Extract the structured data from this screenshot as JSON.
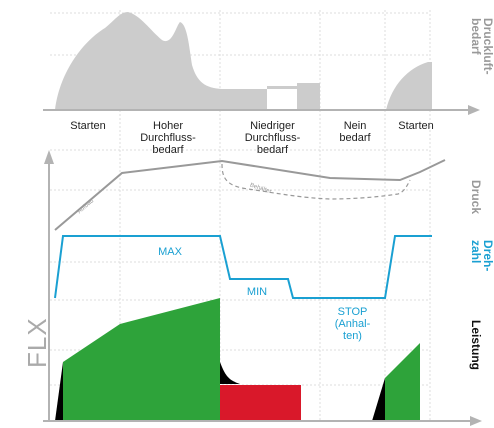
{
  "phases": [
    {
      "id": "start1",
      "lines": [
        "Starten"
      ]
    },
    {
      "id": "high",
      "lines": [
        "Hoher",
        "Durchfluss-",
        "bedarf"
      ]
    },
    {
      "id": "low",
      "lines": [
        "Niedriger",
        "Durchfluss-",
        "bedarf"
      ]
    },
    {
      "id": "none",
      "lines": [
        "Nein",
        "bedarf"
      ]
    },
    {
      "id": "start2",
      "lines": [
        "Starten"
      ]
    }
  ],
  "row_labels": {
    "demand": [
      "Druckluft-",
      "bedarf"
    ],
    "pressure": "Druck",
    "speed": [
      "Dreh-",
      "zahl"
    ],
    "power": "Leistung"
  },
  "annotations": {
    "aufbau": "Aufbau",
    "behalter": "Behälter",
    "max": "MAX",
    "min": "MIN",
    "stop": [
      "STOP",
      "(Anhal-",
      "ten)"
    ]
  },
  "brand": "FLX",
  "colors": {
    "demand_fill": "#cccccc",
    "pressure_line": "#999999",
    "speed_line": "#1aa0d2",
    "power_green": "#2ea33a",
    "power_red": "#d9182a",
    "power_black": "#000000",
    "axis": "#b3b3b3",
    "grid": "#e6e6e6"
  }
}
